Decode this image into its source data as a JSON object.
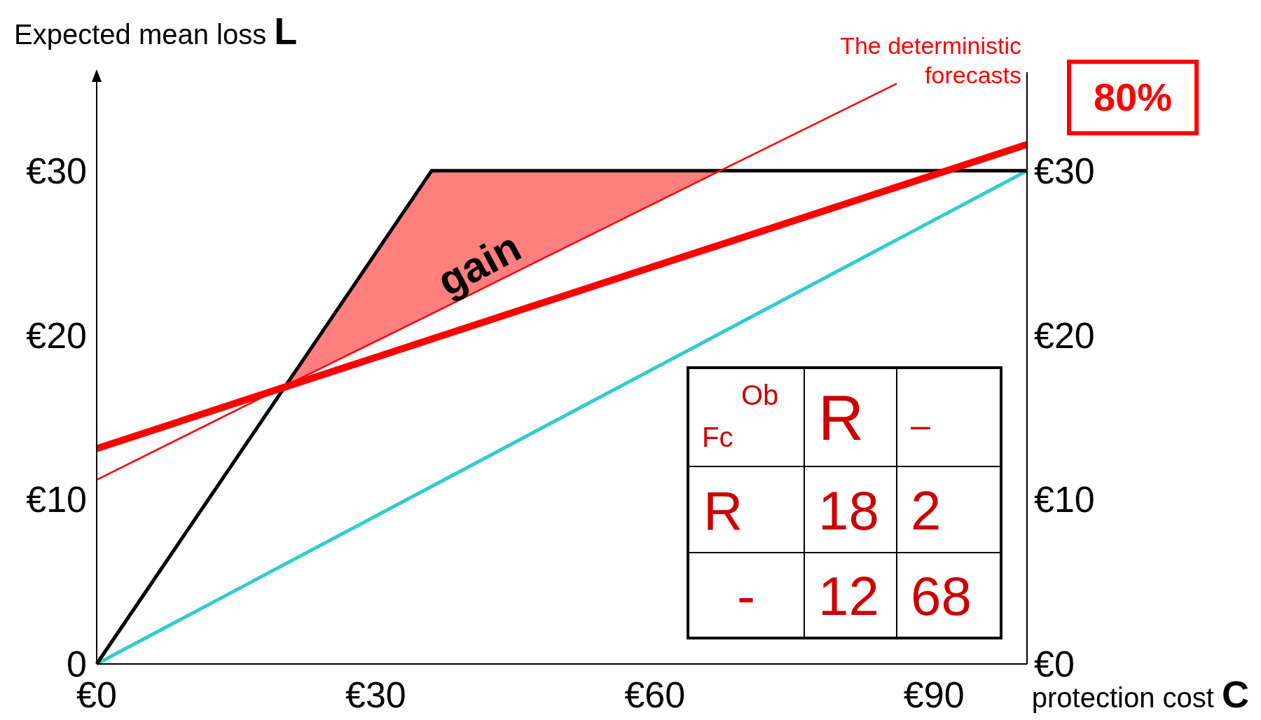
{
  "chart_data": {
    "type": "line",
    "xlabel": "protection cost C",
    "ylabel": "Expected mean loss L",
    "xlim": [
      0,
      100
    ],
    "ylim": [
      0,
      36
    ],
    "y2lim": [
      0,
      36
    ],
    "xticks": [
      {
        "value": 0,
        "label": "€0"
      },
      {
        "value": 30,
        "label": "€30"
      },
      {
        "value": 60,
        "label": "€60"
      },
      {
        "value": 90,
        "label": "€90"
      }
    ],
    "yticks": [
      0,
      {
        "value": 10,
        "label": "€10"
      },
      {
        "value": 20,
        "label": "€20"
      },
      {
        "value": 30,
        "label": "€30"
      }
    ],
    "y2ticks": [
      {
        "value": 0,
        "label": "€0"
      },
      {
        "value": 10,
        "label": "€10"
      },
      {
        "value": 20,
        "label": "€20"
      },
      {
        "value": 30,
        "label": "€30"
      }
    ],
    "series": [
      {
        "color": "#33cccc",
        "x": [
          0,
          100
        ],
        "values": [
          0,
          30
        ]
      },
      {
        "color": "#000000",
        "x": [
          0,
          36,
          100
        ],
        "values": [
          0,
          30,
          30
        ]
      },
      {
        "name": "The deterministic forecasts",
        "color": "#ff0000",
        "x": [
          0,
          20.2,
          36,
          67,
          86
        ],
        "values": [
          11.2,
          16.9,
          21.3,
          30,
          35.3
        ],
        "lower": [
          null,
          16.9,
          21.3,
          30,
          null
        ],
        "upper": [
          null,
          16.9,
          30,
          30,
          null
        ]
      },
      {
        "name": "80%",
        "color": "#ff0000",
        "x": [
          0,
          100
        ],
        "values": [
          13.1,
          31.6
        ]
      }
    ],
    "annotations": [
      "gain",
      "Ob",
      "Fc",
      "R",
      "–",
      "R",
      "18",
      "2",
      "-",
      "12",
      "68"
    ]
  }
}
